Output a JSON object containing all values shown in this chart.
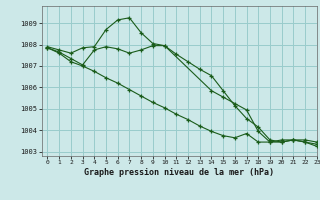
{
  "title": "Graphe pression niveau de la mer (hPa)",
  "bg_color": "#cce8e8",
  "grid_color": "#99cccc",
  "line_color": "#1a5c1a",
  "xlim": [
    -0.5,
    23
  ],
  "ylim": [
    1002.8,
    1009.8
  ],
  "yticks": [
    1003,
    1004,
    1005,
    1006,
    1007,
    1008,
    1009
  ],
  "xticks": [
    0,
    1,
    2,
    3,
    4,
    5,
    6,
    7,
    8,
    9,
    10,
    11,
    12,
    13,
    14,
    15,
    16,
    17,
    18,
    19,
    20,
    21,
    22,
    23
  ],
  "series1_x": [
    0,
    1,
    2,
    3,
    4,
    5,
    6,
    7,
    8,
    9,
    10,
    11,
    12,
    13,
    14,
    15,
    16,
    17,
    18,
    19,
    20,
    21,
    22,
    23
  ],
  "series1": [
    1007.9,
    1007.75,
    1007.6,
    1007.85,
    1007.9,
    1008.7,
    1009.15,
    1009.25,
    1008.55,
    1008.05,
    1007.95,
    1007.55,
    1007.2,
    1006.85,
    1006.55,
    1005.85,
    1005.15,
    1004.55,
    1004.15,
    1003.55,
    1003.45,
    1003.55,
    1003.45,
    1003.25
  ],
  "series2_x": [
    0,
    1,
    2,
    3,
    4,
    5,
    6,
    7,
    8,
    9,
    10,
    11,
    12,
    13,
    14,
    15,
    16,
    17,
    18,
    19,
    20,
    21,
    22,
    23
  ],
  "series2": [
    1007.85,
    1007.6,
    1007.2,
    1007.0,
    1006.75,
    1006.45,
    1006.2,
    1005.9,
    1005.6,
    1005.3,
    1005.05,
    1004.75,
    1004.5,
    1004.2,
    1003.95,
    1003.75,
    1003.65,
    1003.85,
    1003.45,
    1003.45,
    1003.55,
    1003.55,
    1003.45,
    1003.35
  ],
  "series3_x": [
    0,
    1,
    2,
    3,
    4,
    5,
    6,
    7,
    8,
    9,
    10,
    14,
    15,
    16,
    17,
    18,
    19,
    20,
    21,
    22,
    23
  ],
  "series3": [
    1007.85,
    1007.65,
    1007.35,
    1007.05,
    1007.75,
    1007.9,
    1007.8,
    1007.6,
    1007.75,
    1007.95,
    1007.95,
    1005.85,
    1005.55,
    1005.25,
    1004.95,
    1003.95,
    1003.45,
    1003.45,
    1003.55,
    1003.55,
    1003.45
  ]
}
